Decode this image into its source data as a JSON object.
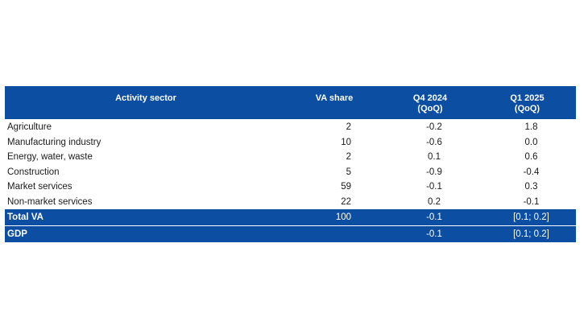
{
  "table": {
    "headers": {
      "sector": "Activity sector",
      "va_share": "VA share",
      "q4_line1": "Q4 2024",
      "q4_line2": "(QoQ)",
      "q1_line1": "Q1 2025",
      "q1_line2": "(QoQ)"
    },
    "rows": [
      {
        "sector": "Agriculture",
        "va_share": "2",
        "q4": "-0.2",
        "q1": "1.8"
      },
      {
        "sector": "Manufacturing industry",
        "va_share": "10",
        "q4": "-0.6",
        "q1": "0.0"
      },
      {
        "sector": "Energy, water, waste",
        "va_share": "2",
        "q4": "0.1",
        "q1": "0.6"
      },
      {
        "sector": "Construction",
        "va_share": "5",
        "q4": "-0.9",
        "q1": "-0.4"
      },
      {
        "sector": "Market services",
        "va_share": "59",
        "q4": "-0.1",
        "q1": "0.3"
      },
      {
        "sector": "Non-market services",
        "va_share": "22",
        "q4": "0.2",
        "q1": "-0.1"
      }
    ],
    "totals": [
      {
        "sector": "Total VA",
        "va_share": "100",
        "q4": "-0.1",
        "q1": "[0.1; 0.2]"
      },
      {
        "sector": "GDP",
        "va_share": "",
        "q4": "-0.1",
        "q1": "[0.1; 0.2]"
      }
    ]
  },
  "colors": {
    "header_bg": "#0b4ea2",
    "header_text": "#ffffff",
    "body_text": "#1a1a1a"
  }
}
